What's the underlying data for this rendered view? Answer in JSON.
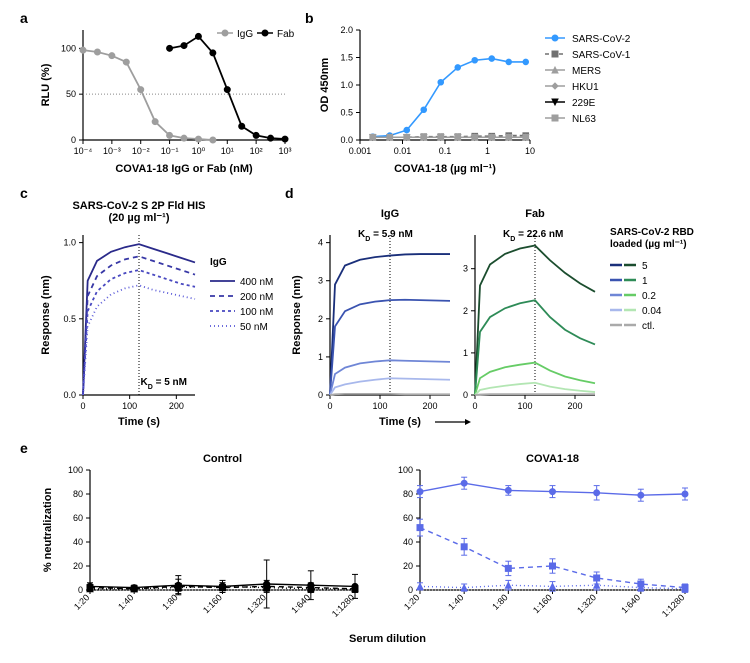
{
  "panels": {
    "a": {
      "label": "a",
      "x_label": "COVA1-18 IgG or Fab (nM)",
      "y_label": "RLU (%)",
      "x_ticks": [
        "10⁻⁴",
        "10⁻³",
        "10⁻²",
        "10⁻¹",
        "10⁰",
        "10¹",
        "10²",
        "10³"
      ],
      "y_ticks": [
        0,
        50,
        100
      ],
      "y_lim": [
        0,
        120
      ],
      "series": [
        {
          "name": "IgG",
          "color": "#9e9e9e",
          "marker": "circle",
          "x": [
            -4,
            -3.5,
            -3,
            -2.5,
            -2,
            -1.5,
            -1,
            -0.5,
            0,
            0.5
          ],
          "y": [
            98,
            96,
            92,
            85,
            55,
            20,
            5,
            2,
            1,
            0
          ]
        },
        {
          "name": "Fab",
          "color": "#000000",
          "marker": "circle",
          "x": [
            -1,
            -0.5,
            0,
            0.5,
            1,
            1.5,
            2,
            2.5,
            3
          ],
          "y": [
            100,
            103,
            113,
            95,
            55,
            15,
            5,
            2,
            1
          ]
        }
      ],
      "hline": 50
    },
    "b": {
      "label": "b",
      "x_label": "COVA1-18 (µg ml⁻¹)",
      "y_label": "OD 450nm",
      "x_ticks": [
        "0.001",
        "0.01",
        "0.1",
        "1",
        "10"
      ],
      "y_ticks": [
        0,
        0.5,
        1.0,
        1.5,
        2.0
      ],
      "y_lim": [
        0,
        2.0
      ],
      "series": [
        {
          "name": "SARS-CoV-2",
          "color": "#3399ff",
          "marker": "circle",
          "style": "solid",
          "x": [
            -2.7,
            -2.3,
            -1.9,
            -1.5,
            -1.1,
            -0.7,
            -0.3,
            0.1,
            0.5,
            0.9
          ],
          "y": [
            0.06,
            0.08,
            0.18,
            0.55,
            1.05,
            1.32,
            1.45,
            1.48,
            1.42,
            1.42
          ]
        },
        {
          "name": "SARS-CoV-1",
          "color": "#707070",
          "marker": "square",
          "style": "dashed",
          "x": [
            -2.7,
            -2.3,
            -1.9,
            -1.5,
            -1.1,
            -0.7,
            -0.3,
            0.1,
            0.5,
            0.9
          ],
          "y": [
            0.05,
            0.05,
            0.05,
            0.06,
            0.06,
            0.06,
            0.07,
            0.07,
            0.08,
            0.08
          ]
        },
        {
          "name": "MERS",
          "color": "#9e9e9e",
          "marker": "triangle-up",
          "style": "solid",
          "x": [
            -2.7,
            -2.3,
            -1.9,
            -1.5,
            -1.1,
            -0.7,
            -0.3,
            0.1,
            0.5,
            0.9
          ],
          "y": [
            0.05,
            0.05,
            0.05,
            0.05,
            0.05,
            0.05,
            0.05,
            0.05,
            0.05,
            0.05
          ]
        },
        {
          "name": "HKU1",
          "color": "#9e9e9e",
          "marker": "diamond",
          "style": "solid",
          "x": [
            -2.7,
            -2.3,
            -1.9,
            -1.5,
            -1.1,
            -0.7,
            -0.3,
            0.1,
            0.5,
            0.9
          ],
          "y": [
            0.05,
            0.05,
            0.05,
            0.05,
            0.05,
            0.05,
            0.05,
            0.05,
            0.05,
            0.05
          ]
        },
        {
          "name": "229E",
          "color": "#000000",
          "marker": "triangle-down",
          "style": "solid",
          "x": [
            -2.7,
            -2.3,
            -1.9,
            -1.5,
            -1.1,
            -0.7,
            -0.3,
            0.1,
            0.5,
            0.9
          ],
          "y": [
            0.05,
            0.05,
            0.05,
            0.05,
            0.05,
            0.05,
            0.05,
            0.05,
            0.05,
            0.05
          ]
        },
        {
          "name": "NL63",
          "color": "#9e9e9e",
          "marker": "square",
          "style": "solid",
          "x": [
            -2.7,
            -2.3,
            -1.9,
            -1.5,
            -1.1,
            -0.7,
            -0.3,
            0.1,
            0.5,
            0.9
          ],
          "y": [
            0.05,
            0.05,
            0.05,
            0.05,
            0.05,
            0.05,
            0.05,
            0.05,
            0.05,
            0.05
          ]
        }
      ]
    },
    "c": {
      "label": "c",
      "title": "SARS-CoV-2 S 2P Fld HIS\n(20 µg ml⁻¹)",
      "x_label": "Time (s)",
      "y_label": "Response (nm)",
      "x_ticks": [
        0,
        100,
        200
      ],
      "y_ticks": [
        0,
        0.5,
        1.0
      ],
      "annotation": "K_D = 5 nM",
      "vline": 120,
      "legend_title": "IgG",
      "series": [
        {
          "name": "400 nM",
          "color": "#2a2a8a",
          "dash": "solid",
          "x": [
            0,
            10,
            30,
            60,
            90,
            120,
            150,
            180,
            210,
            240
          ],
          "y": [
            0,
            0.75,
            0.88,
            0.94,
            0.97,
            0.99,
            0.96,
            0.93,
            0.9,
            0.87
          ]
        },
        {
          "name": "200 nM",
          "color": "#3838a6",
          "dash": "5,4",
          "x": [
            0,
            10,
            30,
            60,
            90,
            120,
            150,
            180,
            210,
            240
          ],
          "y": [
            0,
            0.65,
            0.78,
            0.85,
            0.89,
            0.91,
            0.88,
            0.85,
            0.82,
            0.79
          ]
        },
        {
          "name": "100 nM",
          "color": "#4848c0",
          "dash": "3,3",
          "x": [
            0,
            10,
            30,
            60,
            90,
            120,
            150,
            180,
            210,
            240
          ],
          "y": [
            0,
            0.55,
            0.68,
            0.76,
            0.8,
            0.82,
            0.79,
            0.76,
            0.73,
            0.71
          ]
        },
        {
          "name": "50 nM",
          "color": "#5858d8",
          "dash": "1,3",
          "x": [
            0,
            10,
            30,
            60,
            90,
            120,
            150,
            180,
            210,
            240
          ],
          "y": [
            0,
            0.45,
            0.58,
            0.66,
            0.7,
            0.72,
            0.69,
            0.67,
            0.65,
            0.63
          ]
        }
      ]
    },
    "d": {
      "label": "d",
      "titles": [
        "IgG",
        "Fab"
      ],
      "x_label": "Time (s)",
      "y_label": "Response (nm)",
      "x_ticks": [
        0,
        100,
        200
      ],
      "y_ticks_left": [
        0,
        1,
        2,
        3,
        4
      ],
      "y_ticks_right": [
        0,
        1,
        2,
        3
      ],
      "annotations": [
        "K_D = 5.9 nM",
        "K_D = 22.6 nM"
      ],
      "vline": 120,
      "legend_title": "SARS-CoV-2 RBD\nloaded (µg ml⁻¹)",
      "legend_items": [
        {
          "name": "5",
          "color": "#1b4d2e"
        },
        {
          "name": "1",
          "color": "#2e8b57"
        },
        {
          "name": "0.2",
          "color": "#66cc66"
        },
        {
          "name": "0.04",
          "color": "#b3e6b3"
        },
        {
          "name": "ctl.",
          "color": "#aaaaaa"
        }
      ],
      "left_series": [
        {
          "color": "#1a2f7a",
          "x": [
            0,
            10,
            30,
            60,
            90,
            120,
            150,
            180,
            210,
            240
          ],
          "y": [
            0,
            2.9,
            3.4,
            3.55,
            3.62,
            3.66,
            3.69,
            3.7,
            3.7,
            3.7
          ]
        },
        {
          "color": "#3a53b0",
          "x": [
            0,
            10,
            30,
            60,
            90,
            120,
            150,
            180,
            210,
            240
          ],
          "y": [
            0,
            1.8,
            2.2,
            2.38,
            2.45,
            2.49,
            2.5,
            2.49,
            2.48,
            2.47
          ]
        },
        {
          "color": "#6f86d6",
          "x": [
            0,
            10,
            30,
            60,
            90,
            120,
            150,
            180,
            210,
            240
          ],
          "y": [
            0,
            0.55,
            0.72,
            0.83,
            0.88,
            0.91,
            0.9,
            0.89,
            0.88,
            0.87
          ]
        },
        {
          "color": "#a8b8ec",
          "x": [
            0,
            10,
            30,
            60,
            90,
            120,
            150,
            180,
            210,
            240
          ],
          "y": [
            0,
            0.2,
            0.28,
            0.35,
            0.4,
            0.44,
            0.43,
            0.42,
            0.41,
            0.4
          ]
        },
        {
          "color": "#aaaaaa",
          "x": [
            0,
            10,
            30,
            60,
            90,
            120,
            150,
            180,
            210,
            240
          ],
          "y": [
            0,
            0.02,
            0.03,
            0.03,
            0.03,
            0.03,
            0.02,
            0.02,
            0.02,
            0.02
          ]
        }
      ],
      "right_series": [
        {
          "color": "#1b4d2e",
          "x": [
            0,
            10,
            30,
            60,
            90,
            120,
            150,
            180,
            210,
            240
          ],
          "y": [
            0,
            2.6,
            3.1,
            3.35,
            3.48,
            3.55,
            3.2,
            2.9,
            2.65,
            2.45
          ]
        },
        {
          "color": "#2e8b57",
          "x": [
            0,
            10,
            30,
            60,
            90,
            120,
            150,
            180,
            210,
            240
          ],
          "y": [
            0,
            1.5,
            1.85,
            2.06,
            2.18,
            2.25,
            1.85,
            1.55,
            1.35,
            1.2
          ]
        },
        {
          "color": "#66cc66",
          "x": [
            0,
            10,
            30,
            60,
            90,
            120,
            150,
            180,
            210,
            240
          ],
          "y": [
            0,
            0.4,
            0.55,
            0.66,
            0.72,
            0.77,
            0.58,
            0.44,
            0.35,
            0.28
          ]
        },
        {
          "color": "#b3e6b3",
          "x": [
            0,
            10,
            30,
            60,
            90,
            120,
            150,
            180,
            210,
            240
          ],
          "y": [
            0,
            0.12,
            0.17,
            0.22,
            0.26,
            0.29,
            0.2,
            0.14,
            0.1,
            0.07
          ]
        },
        {
          "color": "#aaaaaa",
          "x": [
            0,
            10,
            30,
            60,
            90,
            120,
            150,
            180,
            210,
            240
          ],
          "y": [
            0,
            0.01,
            0.02,
            0.02,
            0.02,
            0.02,
            0.02,
            0.02,
            0.02,
            0.02
          ]
        }
      ]
    },
    "e": {
      "label": "e",
      "titles": [
        "Control",
        "COVA1-18"
      ],
      "x_label": "Serum dilution",
      "y_label": "% neutralization",
      "x_ticks": [
        "1:20",
        "1:40",
        "1:80",
        "1:160",
        "1:320",
        "1:640",
        "1:1280"
      ],
      "y_ticks": [
        0,
        20,
        40,
        60,
        80,
        100
      ],
      "left_color": "#000000",
      "right_color": "#5b6be8",
      "left_series": [
        {
          "marker": "circle",
          "style": "solid",
          "y": [
            3,
            2,
            4,
            3,
            5,
            4,
            3
          ],
          "err": [
            3,
            2,
            8,
            5,
            20,
            12,
            10
          ]
        },
        {
          "marker": "square",
          "style": "dashed",
          "y": [
            2,
            1,
            3,
            2,
            3,
            2,
            1
          ],
          "err": [
            2,
            2,
            6,
            4,
            5,
            4,
            3
          ]
        },
        {
          "marker": "triangle-up",
          "style": "dotted",
          "y": [
            1,
            1,
            2,
            3,
            2,
            1,
            1
          ],
          "err": [
            2,
            2,
            3,
            3,
            3,
            3,
            3
          ]
        }
      ],
      "right_series": [
        {
          "marker": "circle",
          "style": "solid",
          "y": [
            82,
            89,
            83,
            82,
            81,
            79,
            80
          ],
          "err": [
            5,
            5,
            4,
            5,
            6,
            5,
            5
          ]
        },
        {
          "marker": "square",
          "style": "dashed",
          "y": [
            52,
            36,
            18,
            20,
            10,
            5,
            2
          ],
          "err": [
            7,
            7,
            6,
            6,
            5,
            4,
            3
          ]
        },
        {
          "marker": "triangle-up",
          "style": "dotted",
          "y": [
            3,
            2,
            4,
            3,
            4,
            2,
            1
          ],
          "err": [
            3,
            3,
            4,
            4,
            4,
            3,
            3
          ]
        }
      ]
    }
  }
}
